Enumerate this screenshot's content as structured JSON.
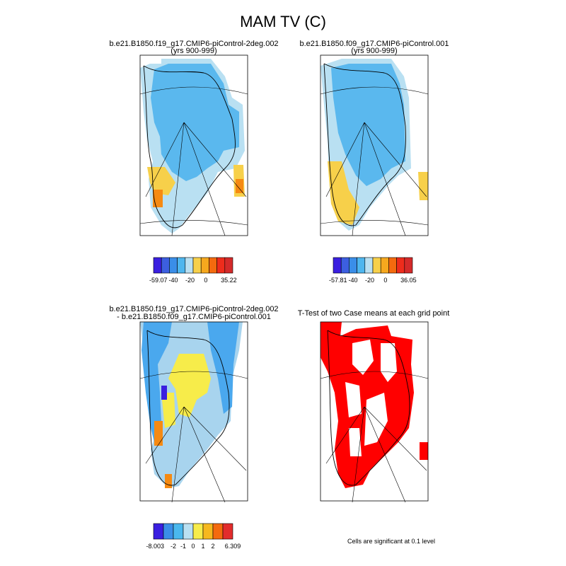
{
  "title": "MAM TV (C)",
  "panels": [
    {
      "title": [
        "b.e21.B1850.f19_g17.CMIP6-piControl-2deg.002",
        "(yrs 900-999)"
      ],
      "colorbar_labels": [
        "-59.07",
        "-40",
        "-20",
        "0",
        "35.22"
      ]
    },
    {
      "title": [
        "b.e21.B1850.f09_g17.CMIP6-piControl.001",
        "(yrs 900-999)"
      ],
      "colorbar_labels": [
        "-57.81",
        "-40",
        "-20",
        "0",
        "36.05"
      ]
    },
    {
      "title": [
        "b.e21.B1850.f19_g17.CMIP6-piControl-2deg.002",
        "- b.e21.B1850.f09_g17.CMIP6-piControl.001"
      ],
      "colorbar_labels": [
        "-8.003",
        "-2",
        "-1",
        "0",
        "1",
        "2",
        "6.309"
      ]
    },
    {
      "title": [
        "T-Test of two Case means at each grid point"
      ],
      "note": "Cells are significant at 0.1 level"
    }
  ]
}
